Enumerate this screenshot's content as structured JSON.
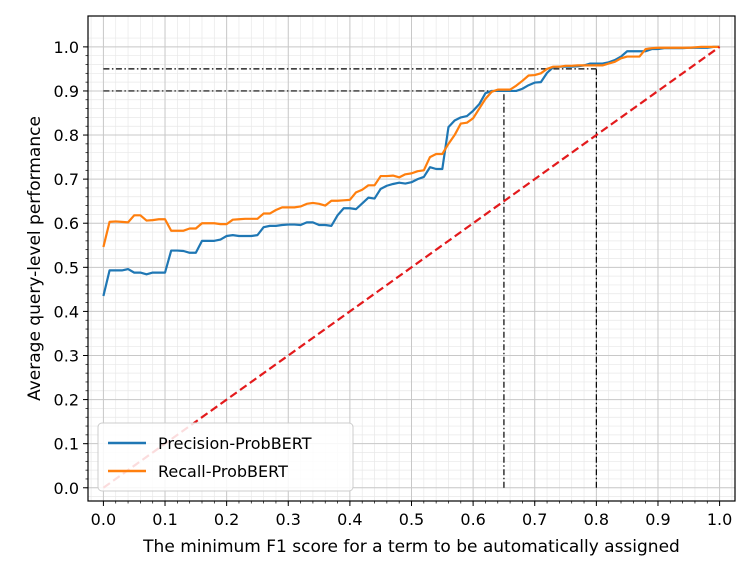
{
  "chart_data": {
    "type": "line",
    "title": "",
    "xlabel": "The minimum F1 score for a term to be automatically assigned",
    "ylabel": "Average query-level performance",
    "xlim": [
      -0.025,
      1.025
    ],
    "ylim": [
      -0.03,
      1.07
    ],
    "xticks": [
      0.0,
      0.1,
      0.2,
      0.3,
      0.4,
      0.5,
      0.6,
      0.7,
      0.8,
      0.9,
      1.0
    ],
    "yticks": [
      0.0,
      0.1,
      0.2,
      0.3,
      0.4,
      0.5,
      0.6,
      0.7,
      0.8,
      0.9,
      1.0
    ],
    "xtick_labels": [
      "0.0",
      "0.1",
      "0.2",
      "0.3",
      "0.4",
      "0.5",
      "0.6",
      "0.7",
      "0.8",
      "0.9",
      "1.0"
    ],
    "ytick_labels": [
      "0.0",
      "0.1",
      "0.2",
      "0.3",
      "0.4",
      "0.5",
      "0.6",
      "0.7",
      "0.8",
      "0.9",
      "1.0"
    ],
    "grid": true,
    "minor_grid": true,
    "legend_position": "lower-left",
    "series": [
      {
        "name": "Precision-ProbBERT",
        "color": "#1f77b4",
        "x": [
          0.0,
          0.01,
          0.02,
          0.03,
          0.04,
          0.05,
          0.06,
          0.07,
          0.08,
          0.09,
          0.1,
          0.11,
          0.12,
          0.13,
          0.14,
          0.15,
          0.16,
          0.17,
          0.18,
          0.19,
          0.2,
          0.21,
          0.22,
          0.23,
          0.24,
          0.25,
          0.26,
          0.27,
          0.28,
          0.29,
          0.3,
          0.31,
          0.32,
          0.33,
          0.34,
          0.35,
          0.36,
          0.37,
          0.38,
          0.39,
          0.4,
          0.41,
          0.42,
          0.43,
          0.44,
          0.45,
          0.46,
          0.47,
          0.48,
          0.49,
          0.5,
          0.51,
          0.52,
          0.53,
          0.54,
          0.55,
          0.56,
          0.57,
          0.58,
          0.59,
          0.6,
          0.61,
          0.62,
          0.63,
          0.64,
          0.65,
          0.66,
          0.67,
          0.68,
          0.69,
          0.7,
          0.71,
          0.72,
          0.73,
          0.74,
          0.75,
          0.76,
          0.77,
          0.78,
          0.79,
          0.8,
          0.81,
          0.82,
          0.83,
          0.84,
          0.85,
          0.86,
          0.87,
          0.88,
          0.89,
          0.9,
          0.91,
          0.92,
          0.93,
          0.94,
          0.95,
          0.96,
          0.97,
          0.98,
          0.99,
          1.0
        ],
        "y": [
          0.435,
          0.493,
          0.493,
          0.493,
          0.496,
          0.488,
          0.488,
          0.484,
          0.488,
          0.488,
          0.488,
          0.538,
          0.538,
          0.537,
          0.533,
          0.533,
          0.56,
          0.56,
          0.56,
          0.563,
          0.571,
          0.573,
          0.571,
          0.571,
          0.571,
          0.573,
          0.591,
          0.594,
          0.594,
          0.596,
          0.597,
          0.597,
          0.596,
          0.602,
          0.602,
          0.596,
          0.596,
          0.594,
          0.618,
          0.634,
          0.634,
          0.632,
          0.645,
          0.658,
          0.656,
          0.678,
          0.685,
          0.689,
          0.692,
          0.69,
          0.693,
          0.7,
          0.705,
          0.727,
          0.723,
          0.723,
          0.818,
          0.833,
          0.84,
          0.843,
          0.855,
          0.87,
          0.895,
          0.9,
          0.9,
          0.9,
          0.9,
          0.9,
          0.905,
          0.913,
          0.919,
          0.92,
          0.941,
          0.954,
          0.955,
          0.955,
          0.955,
          0.956,
          0.958,
          0.962,
          0.962,
          0.962,
          0.965,
          0.97,
          0.978,
          0.99,
          0.99,
          0.99,
          0.99,
          0.995,
          0.995,
          0.997,
          0.997,
          0.997,
          0.997,
          0.998,
          0.998,
          0.998,
          0.998,
          1.0,
          1.0
        ]
      },
      {
        "name": "Recall-ProbBERT",
        "color": "#ff7f0e",
        "x": [
          0.0,
          0.01,
          0.02,
          0.03,
          0.04,
          0.05,
          0.06,
          0.07,
          0.08,
          0.09,
          0.1,
          0.11,
          0.12,
          0.13,
          0.14,
          0.15,
          0.16,
          0.17,
          0.18,
          0.19,
          0.2,
          0.21,
          0.22,
          0.23,
          0.24,
          0.25,
          0.26,
          0.27,
          0.28,
          0.29,
          0.3,
          0.31,
          0.32,
          0.33,
          0.34,
          0.35,
          0.36,
          0.37,
          0.38,
          0.39,
          0.4,
          0.41,
          0.42,
          0.43,
          0.44,
          0.45,
          0.46,
          0.47,
          0.48,
          0.49,
          0.5,
          0.51,
          0.52,
          0.53,
          0.54,
          0.55,
          0.56,
          0.57,
          0.58,
          0.59,
          0.6,
          0.61,
          0.62,
          0.63,
          0.64,
          0.65,
          0.66,
          0.67,
          0.68,
          0.69,
          0.7,
          0.71,
          0.72,
          0.73,
          0.74,
          0.75,
          0.76,
          0.77,
          0.78,
          0.79,
          0.8,
          0.81,
          0.82,
          0.83,
          0.84,
          0.85,
          0.86,
          0.87,
          0.88,
          0.89,
          0.9,
          0.91,
          0.92,
          0.93,
          0.94,
          0.95,
          0.96,
          0.97,
          0.98,
          0.99,
          1.0
        ],
        "y": [
          0.546,
          0.603,
          0.604,
          0.603,
          0.602,
          0.618,
          0.618,
          0.606,
          0.607,
          0.609,
          0.609,
          0.583,
          0.583,
          0.583,
          0.588,
          0.588,
          0.6,
          0.6,
          0.6,
          0.598,
          0.598,
          0.608,
          0.609,
          0.61,
          0.61,
          0.61,
          0.622,
          0.622,
          0.63,
          0.636,
          0.636,
          0.636,
          0.638,
          0.644,
          0.646,
          0.644,
          0.64,
          0.651,
          0.651,
          0.652,
          0.653,
          0.67,
          0.676,
          0.686,
          0.686,
          0.707,
          0.707,
          0.708,
          0.704,
          0.711,
          0.713,
          0.718,
          0.72,
          0.75,
          0.757,
          0.757,
          0.78,
          0.8,
          0.826,
          0.828,
          0.838,
          0.86,
          0.882,
          0.898,
          0.903,
          0.903,
          0.903,
          0.912,
          0.923,
          0.935,
          0.936,
          0.94,
          0.95,
          0.955,
          0.955,
          0.957,
          0.957,
          0.958,
          0.958,
          0.958,
          0.958,
          0.958,
          0.962,
          0.966,
          0.974,
          0.978,
          0.978,
          0.978,
          0.995,
          0.997,
          0.998,
          0.998,
          0.998,
          0.998,
          0.998,
          0.998,
          0.999,
          1.0,
          1.0,
          1.0,
          1.0
        ]
      },
      {
        "name": "",
        "color": "#e31a1c",
        "style": "dashed",
        "x": [
          0.0,
          1.0
        ],
        "y": [
          0.0,
          1.0
        ]
      }
    ],
    "reference_lines": [
      {
        "x": [
          0.0,
          0.65
        ],
        "y": [
          0.9,
          0.9
        ]
      },
      {
        "x": [
          0.65,
          0.65
        ],
        "y": [
          0.0,
          0.9
        ]
      },
      {
        "x": [
          0.0,
          0.8
        ],
        "y": [
          0.95,
          0.95
        ]
      },
      {
        "x": [
          0.8,
          0.8
        ],
        "y": [
          0.0,
          0.95
        ]
      }
    ]
  }
}
